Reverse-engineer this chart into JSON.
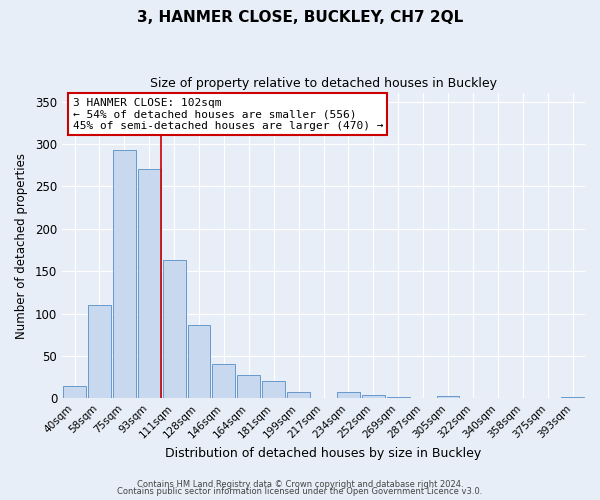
{
  "title": "3, HANMER CLOSE, BUCKLEY, CH7 2QL",
  "subtitle": "Size of property relative to detached houses in Buckley",
  "xlabel": "Distribution of detached houses by size in Buckley",
  "ylabel": "Number of detached properties",
  "bar_labels": [
    "40sqm",
    "58sqm",
    "75sqm",
    "93sqm",
    "111sqm",
    "128sqm",
    "146sqm",
    "164sqm",
    "181sqm",
    "199sqm",
    "217sqm",
    "234sqm",
    "252sqm",
    "269sqm",
    "287sqm",
    "305sqm",
    "322sqm",
    "340sqm",
    "358sqm",
    "375sqm",
    "393sqm"
  ],
  "bar_values": [
    15,
    110,
    293,
    270,
    163,
    87,
    41,
    27,
    20,
    8,
    0,
    8,
    4,
    2,
    0,
    3,
    0,
    0,
    0,
    0,
    2
  ],
  "bar_color": "#c8d9ef",
  "bar_edge_color": "#6699cc",
  "background_color": "#e8eef7",
  "plot_bg_color": "#e8eef7",
  "grid_color": "#ffffff",
  "annotation_title": "3 HANMER CLOSE: 102sqm",
  "annotation_line1": "← 54% of detached houses are smaller (556)",
  "annotation_line2": "45% of semi-detached houses are larger (470) →",
  "annotation_box_facecolor": "#ffffff",
  "annotation_box_edgecolor": "#cc0000",
  "vline_color": "#cc0000",
  "ylim": [
    0,
    360
  ],
  "yticks": [
    0,
    50,
    100,
    150,
    200,
    250,
    300,
    350
  ],
  "footer1": "Contains HM Land Registry data © Crown copyright and database right 2024.",
  "footer2": "Contains public sector information licensed under the Open Government Licence v3.0."
}
